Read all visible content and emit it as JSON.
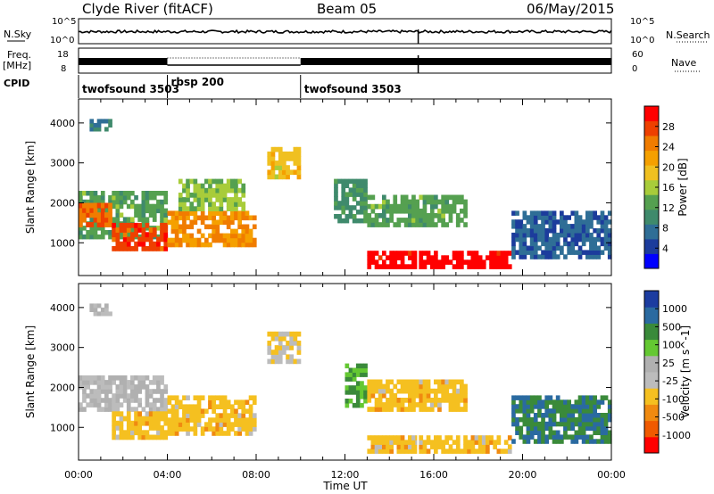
{
  "header": {
    "station": "Clyde River (fitACF)",
    "beam": "Beam 05",
    "date": "06/May/2015"
  },
  "strip_labels": {
    "nsky": "N.Sky",
    "freq_top": "Freq.",
    "freq_unit": "[MHz]",
    "cpid": "CPID",
    "nsearch": "N.Search",
    "nave": "Nave",
    "nsky_hi": "10^5",
    "nsky_lo": "10^0",
    "freq_hi": "18",
    "freq_lo": "8",
    "nave_hi": "60",
    "nave_lo": "0"
  },
  "cpid_segments": [
    {
      "label": "twofsound 3503",
      "start_h": 0.0,
      "end_h": 4.0
    },
    {
      "label": "rbsp 200",
      "start_h": 4.0,
      "end_h": 10.0
    },
    {
      "label": "twofsound 3503",
      "start_h": 10.0,
      "end_h": 24.0
    }
  ],
  "colors": {
    "power": [
      "#0000ff",
      "#1c3c9c",
      "#2f6e96",
      "#3f8a6c",
      "#55a050",
      "#a8cc3a",
      "#f0c020",
      "#f5a000",
      "#f07c00",
      "#ee4000",
      "#ff0000"
    ],
    "velocity": [
      "#ff0000",
      "#f05a00",
      "#f08a10",
      "#f5c020",
      "#bcbcbc",
      "#b0b0b0",
      "#64c832",
      "#3a8a3a",
      "#2a6aa0",
      "#1c3ca0"
    ],
    "gap": "#ffffff"
  },
  "chart_data": [
    {
      "type": "heatmap",
      "title": "Power",
      "xlabel": "Time UT",
      "ylabel": "Slant Range [km]",
      "xlim": [
        0,
        24
      ],
      "ylim": [
        180,
        4600
      ],
      "x_ticks": [
        "00:00",
        "04:00",
        "08:00",
        "12:00",
        "16:00",
        "20:00",
        "00:00"
      ],
      "y_ticks": [
        1000,
        2000,
        3000,
        4000
      ],
      "colorbar": {
        "label": "Power [dB]",
        "ticks": [
          "28",
          "24",
          "20",
          "16",
          "12",
          "8",
          "4"
        ],
        "range": [
          0,
          30
        ]
      },
      "regions": [
        {
          "t0": 0.0,
          "t1": 4.0,
          "r0": 1100,
          "r1": 2300,
          "value": 12
        },
        {
          "t0": 0.0,
          "t1": 1.5,
          "r0": 1400,
          "r1": 2000,
          "value": 24
        },
        {
          "t0": 1.5,
          "t1": 4.0,
          "r0": 800,
          "r1": 1500,
          "value": 26
        },
        {
          "t0": 4.0,
          "t1": 8.0,
          "r0": 900,
          "r1": 1800,
          "value": 22
        },
        {
          "t0": 4.5,
          "t1": 7.5,
          "r0": 1800,
          "r1": 2600,
          "value": 14
        },
        {
          "t0": 0.5,
          "t1": 1.5,
          "r0": 3800,
          "r1": 4100,
          "value": 8
        },
        {
          "t0": 8.5,
          "t1": 10.0,
          "r0": 2600,
          "r1": 3400,
          "value": 18
        },
        {
          "t0": 11.5,
          "t1": 13.0,
          "r0": 1500,
          "r1": 2600,
          "value": 10
        },
        {
          "t0": 13.0,
          "t1": 17.5,
          "r0": 1400,
          "r1": 2200,
          "value": 12
        },
        {
          "t0": 13.0,
          "t1": 19.5,
          "r0": 350,
          "r1": 800,
          "value": 29
        },
        {
          "t0": 19.5,
          "t1": 24.0,
          "r0": 600,
          "r1": 1800,
          "value": 6
        }
      ]
    },
    {
      "type": "heatmap",
      "title": "Velocity",
      "xlabel": "Time UT",
      "ylabel": "Slant Range [km]",
      "xlim": [
        0,
        24
      ],
      "ylim": [
        180,
        4600
      ],
      "x_ticks": [
        "00:00",
        "04:00",
        "08:00",
        "12:00",
        "16:00",
        "20:00",
        "00:00"
      ],
      "y_ticks": [
        1000,
        2000,
        3000,
        4000
      ],
      "colorbar": {
        "label": "Velocity [m s^-1]",
        "ticks": [
          "1000",
          "500",
          "100",
          "25",
          "-25",
          "-100",
          "-500",
          "-1000"
        ],
        "range": [
          -1000,
          1000
        ]
      },
      "regions": [
        {
          "t0": 0.0,
          "t1": 4.0,
          "r0": 1400,
          "r1": 2300,
          "value": 0
        },
        {
          "t0": 1.5,
          "t1": 4.0,
          "r0": 700,
          "r1": 1400,
          "value": -300
        },
        {
          "t0": 4.0,
          "t1": 8.0,
          "r0": 800,
          "r1": 1800,
          "value": -300
        },
        {
          "t0": 0.5,
          "t1": 1.5,
          "r0": 3800,
          "r1": 4100,
          "value": 0
        },
        {
          "t0": 8.5,
          "t1": 10.0,
          "r0": 2600,
          "r1": 3400,
          "value": -200
        },
        {
          "t0": 12.0,
          "t1": 13.0,
          "r0": 1500,
          "r1": 2600,
          "value": 400
        },
        {
          "t0": 13.0,
          "t1": 17.5,
          "r0": 1400,
          "r1": 2200,
          "value": -300
        },
        {
          "t0": 13.0,
          "t1": 19.5,
          "r0": 350,
          "r1": 800,
          "value": -300
        },
        {
          "t0": 19.5,
          "t1": 24.0,
          "r0": 600,
          "r1": 1800,
          "value": 600
        }
      ]
    }
  ]
}
